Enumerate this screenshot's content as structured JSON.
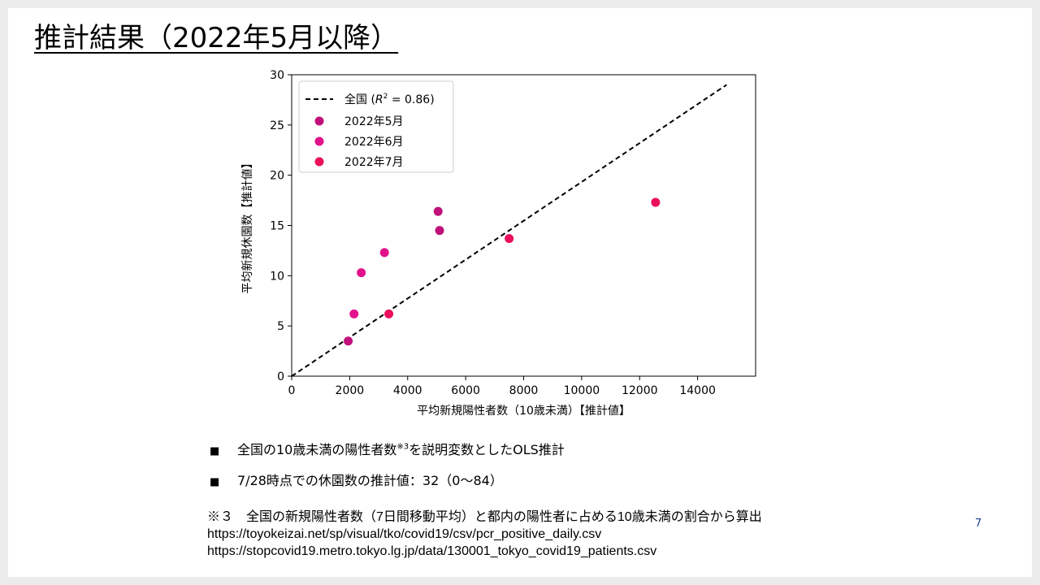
{
  "slide": {
    "title": "推計結果（2022年5月以降）",
    "page_number": "7",
    "bullets": [
      {
        "mark": "■",
        "text_before": "全国の10歳未満の陽性者数",
        "sup": "※3",
        "text_after": "を説明変数としたOLS推計"
      },
      {
        "mark": "■",
        "text_before": "7/28時点での休園数の推計値：32（0〜84）",
        "sup": "",
        "text_after": ""
      }
    ],
    "note_lines": [
      "※３　全国の新規陽性者数（7日間移動平均）と都内の陽性者に占める10歳未満の割合から算出",
      "https://toyokeizai.net/sp/visual/tko/covid19/csv/pcr_positive_daily.csv",
      "https://stopcovid19.metro.tokyo.lg.jp/data/130001_tokyo_covid19_patients.csv"
    ]
  },
  "chart_data": {
    "type": "scatter",
    "title": "",
    "xlabel": "平均新規陽性者数（10歳未満）【推計値】",
    "ylabel": "平均新規休園数【推計値】",
    "xlim": [
      0,
      16000
    ],
    "ylim": [
      0,
      30
    ],
    "x_ticks": [
      0,
      2000,
      4000,
      6000,
      8000,
      10000,
      12000,
      14000
    ],
    "y_ticks": [
      0,
      5,
      10,
      15,
      20,
      25,
      30
    ],
    "grid": false,
    "legend_position": "top-left",
    "fit_line": {
      "label_prefix": "全国 (",
      "label_r": "R",
      "label_sup": "2",
      "label_suffix": " = 0.86)",
      "x": [
        0,
        15000
      ],
      "y": [
        0,
        29
      ],
      "style": "dashed",
      "color": "#000000"
    },
    "series": [
      {
        "name": "2022年5月",
        "color": "#c0117a",
        "points": [
          [
            1950,
            3.5
          ],
          [
            5100,
            14.5
          ],
          [
            5050,
            16.4
          ]
        ]
      },
      {
        "name": "2022年6月",
        "color": "#e3118a",
        "points": [
          [
            2150,
            6.2
          ],
          [
            2400,
            10.3
          ],
          [
            3200,
            12.3
          ]
        ]
      },
      {
        "name": "2022年7月",
        "color": "#ea0f5c",
        "points": [
          [
            3350,
            6.2
          ],
          [
            7500,
            13.7
          ],
          [
            12550,
            17.3
          ]
        ]
      }
    ]
  }
}
